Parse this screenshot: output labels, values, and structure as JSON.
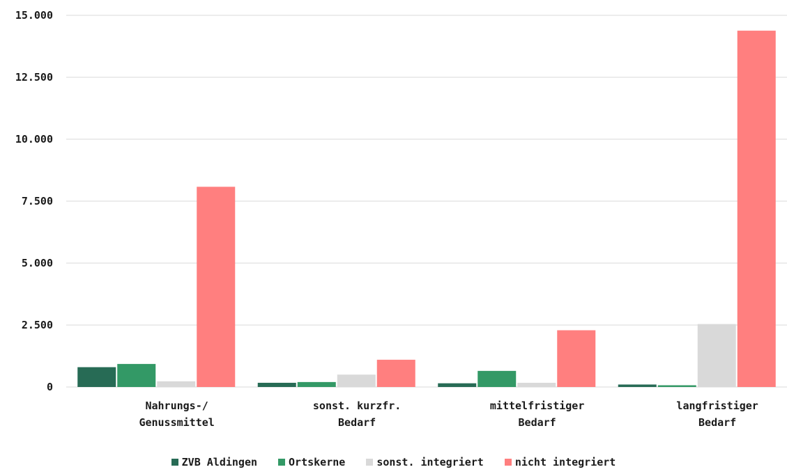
{
  "chart_data": {
    "type": "bar",
    "categories": [
      [
        "Nahrungs-/",
        "Genussmittel"
      ],
      [
        "sonst. kurzfr.",
        "Bedarf"
      ],
      [
        "mittelfristiger",
        "Bedarf"
      ],
      [
        "langfristiger",
        "Bedarf"
      ]
    ],
    "series": [
      {
        "name": "ZVB Aldingen",
        "color": "#276b55",
        "values": [
          800,
          170,
          150,
          100
        ]
      },
      {
        "name": "Ortskerne",
        "color": "#339966",
        "values": [
          930,
          200,
          650,
          70
        ]
      },
      {
        "name": "sonst. integriert",
        "color": "#d9d9d9",
        "values": [
          230,
          500,
          170,
          2540
        ]
      },
      {
        "name": "nicht integriert",
        "color": "#ff7f7f",
        "values": [
          8080,
          1100,
          2290,
          14380
        ]
      }
    ],
    "ylim": [
      0,
      15000
    ],
    "yticks": [
      0,
      2500,
      5000,
      7500,
      10000,
      12500,
      15000
    ],
    "ytick_labels": [
      "0",
      "2.500",
      "5.000",
      "7.500",
      "10.000",
      "12.500",
      "15.000"
    ],
    "grid": true,
    "legend": "bottom"
  }
}
